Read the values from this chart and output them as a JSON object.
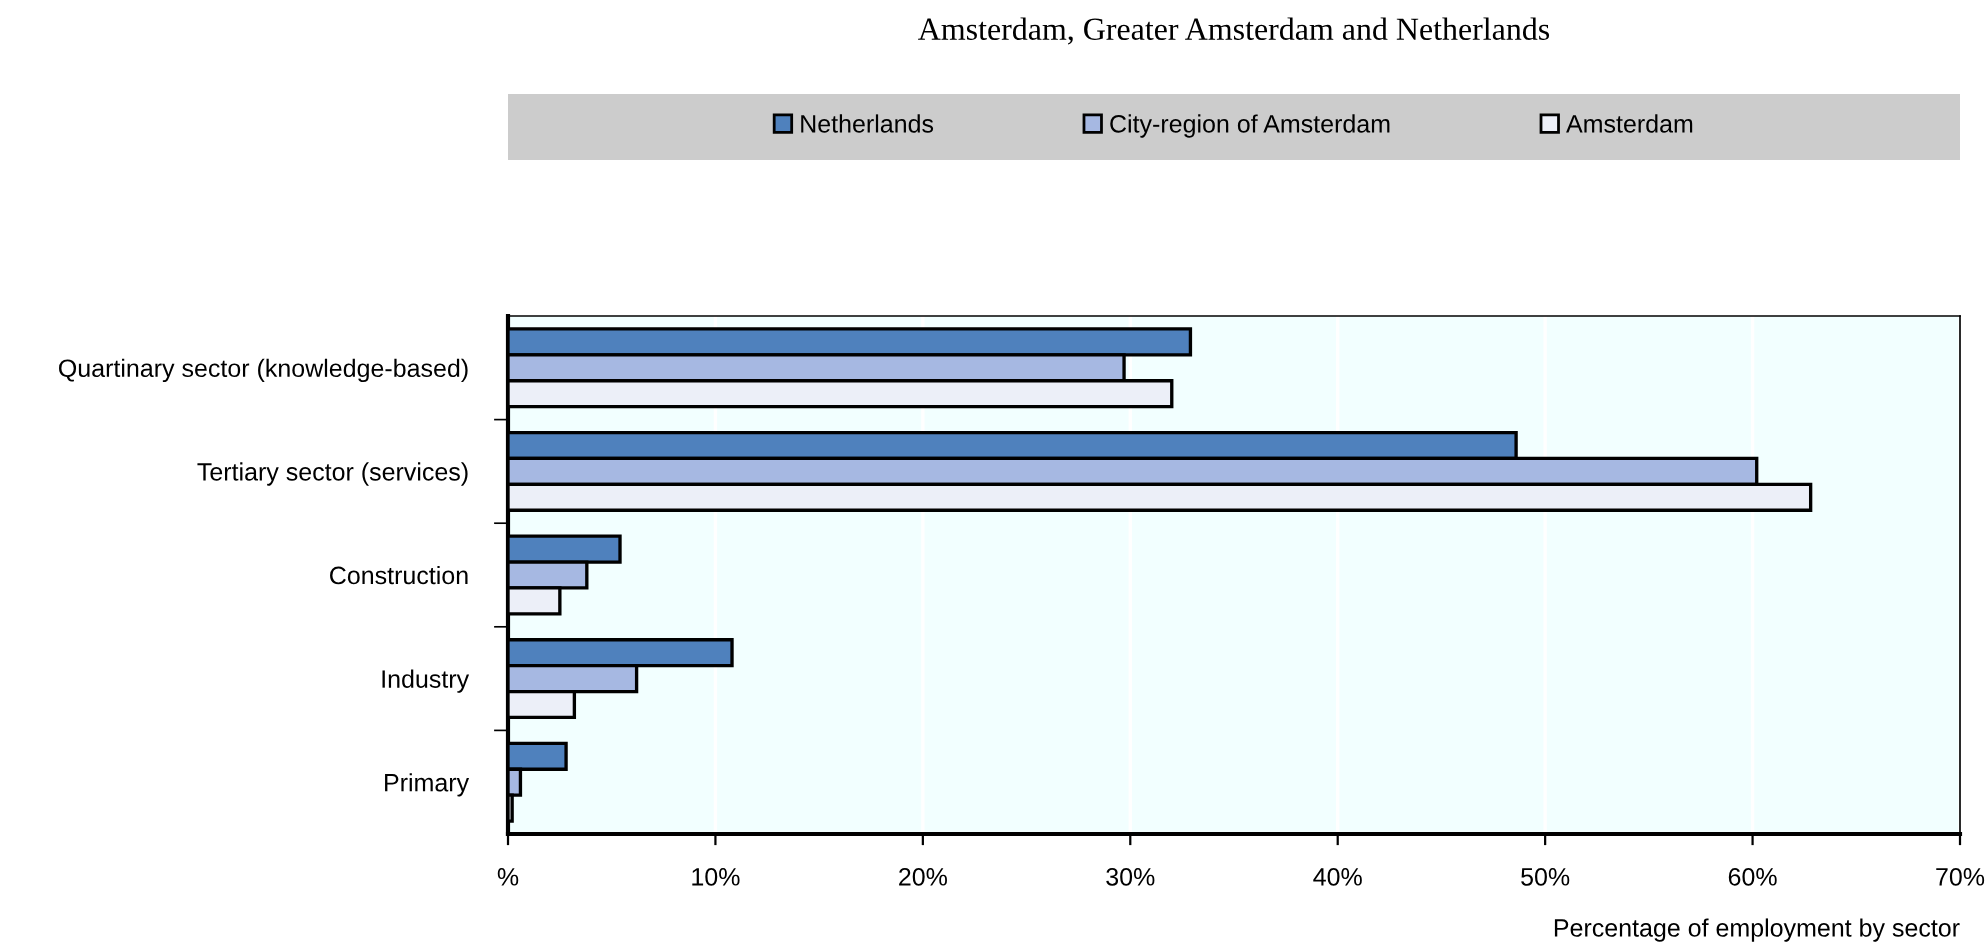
{
  "chart_data": {
    "type": "bar",
    "orientation": "horizontal",
    "title": "Amsterdam, Greater Amsterdam and Netherlands",
    "xlabel": "Percentage of employment by sector",
    "categories": [
      "Quartinary sector (knowledge-based)",
      "Tertiary sector (services)",
      "Construction",
      "Industry",
      "Primary"
    ],
    "series": [
      {
        "name": "Netherlands",
        "color": "#4f81bd",
        "values": [
          32.9,
          48.6,
          5.4,
          10.8,
          2.8
        ]
      },
      {
        "name": "City-region of Amsterdam",
        "color": "#a6b8e2",
        "values": [
          29.7,
          60.2,
          3.8,
          6.2,
          0.6
        ]
      },
      {
        "name": "Amsterdam",
        "color": "#eceff8",
        "values": [
          32.0,
          62.8,
          2.5,
          3.2,
          0.2
        ]
      }
    ],
    "xlim": [
      0,
      70
    ],
    "xticks": [
      {
        "value": 0,
        "label": "%"
      },
      {
        "value": 10,
        "label": "10%"
      },
      {
        "value": 20,
        "label": "20%"
      },
      {
        "value": 30,
        "label": "30%"
      },
      {
        "value": 40,
        "label": "40%"
      },
      {
        "value": 50,
        "label": "50%"
      },
      {
        "value": 60,
        "label": "60%"
      },
      {
        "value": 70,
        "label": "70%"
      }
    ],
    "grid": "x",
    "legend": "top"
  }
}
